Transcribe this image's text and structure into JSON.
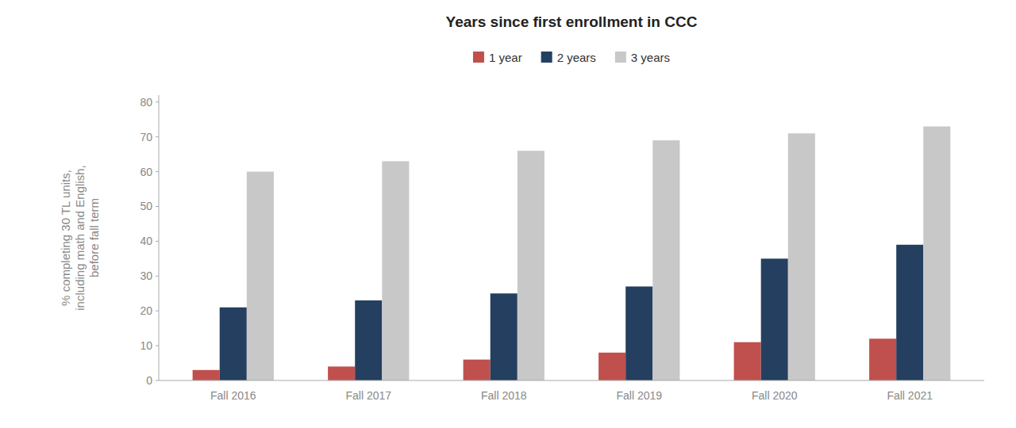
{
  "chart_data": {
    "type": "bar",
    "title": "Years since first enrollment in CCC",
    "categories": [
      "Fall 2016",
      "Fall 2017",
      "Fall 2018",
      "Fall 2019",
      "Fall 2020",
      "Fall 2021"
    ],
    "series": [
      {
        "name": "1 year",
        "color": "#C0504D",
        "values": [
          3,
          4,
          6,
          8,
          11,
          12
        ]
      },
      {
        "name": "2 years",
        "color": "#243F60",
        "values": [
          21,
          23,
          25,
          27,
          35,
          39
        ]
      },
      {
        "name": "3 years",
        "color": "#C8C8C8",
        "values": [
          60,
          63,
          66,
          69,
          71,
          73
        ]
      }
    ],
    "ylabel": "% completing 30 TL units,\nincluding math and English,\nbefore fall term",
    "ylim": [
      0,
      82
    ],
    "yticks": [
      0,
      10,
      20,
      30,
      40,
      50,
      60,
      70,
      80
    ],
    "grid": false,
    "legend": "top"
  }
}
